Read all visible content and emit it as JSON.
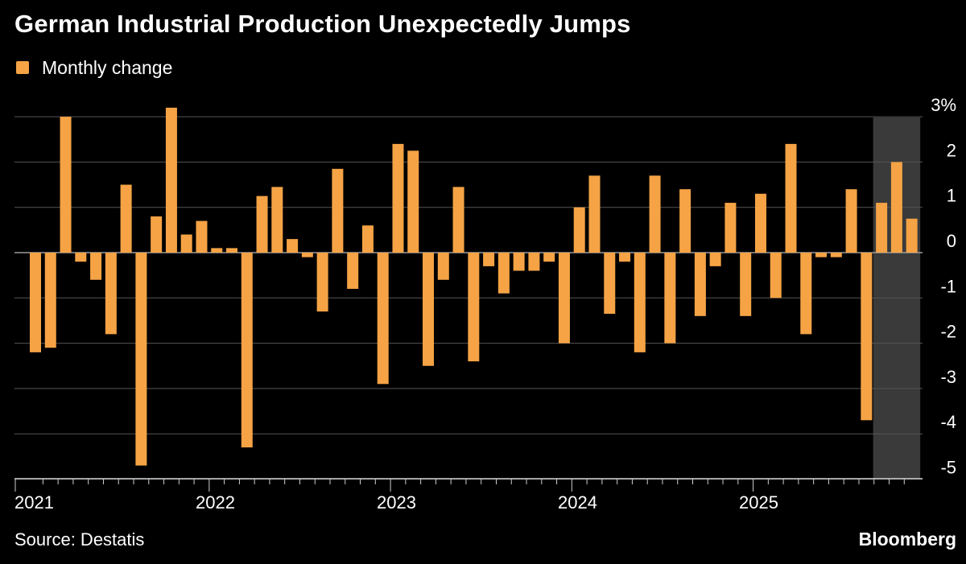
{
  "title": "German Industrial Production Unexpectedly Jumps",
  "legend": {
    "label": "Monthly change",
    "color": "#f5a345"
  },
  "source": "Source: Destatis",
  "brand": "Bloomberg",
  "colors": {
    "background": "#000000",
    "bar": "#f5a345",
    "grid": "#555555",
    "shade": "#3a3a3a",
    "text": "#ffffff"
  },
  "chart_data": {
    "type": "bar",
    "title": "German Industrial Production Unexpectedly Jumps",
    "series_name": "Monthly change",
    "xlabel": "",
    "ylabel": "",
    "ylim": [
      -5.3,
      3.2
    ],
    "y_ticks": [
      {
        "value": 3,
        "label": "3%"
      },
      {
        "value": 2,
        "label": "2"
      },
      {
        "value": 1,
        "label": "1"
      },
      {
        "value": 0,
        "label": "0"
      },
      {
        "value": -1,
        "label": "-1"
      },
      {
        "value": -2,
        "label": "-2"
      },
      {
        "value": -3,
        "label": "-3"
      },
      {
        "value": -4,
        "label": "-4"
      },
      {
        "value": -5,
        "label": "-5"
      }
    ],
    "x_year_labels": [
      "2021",
      "2022",
      "2023",
      "2024",
      "2025"
    ],
    "shaded_region": {
      "from_index": 56,
      "to_index": 58
    },
    "categories": [
      "2021-01",
      "2021-02",
      "2021-03",
      "2021-04",
      "2021-05",
      "2021-06",
      "2021-07",
      "2021-08",
      "2021-09",
      "2021-10",
      "2021-11",
      "2021-12",
      "2022-01",
      "2022-02",
      "2022-03",
      "2022-04",
      "2022-05",
      "2022-06",
      "2022-07",
      "2022-08",
      "2022-09",
      "2022-10",
      "2022-11",
      "2022-12",
      "2023-01",
      "2023-02",
      "2023-03",
      "2023-04",
      "2023-05",
      "2023-06",
      "2023-07",
      "2023-08",
      "2023-09",
      "2023-10",
      "2023-11",
      "2023-12",
      "2024-01",
      "2024-02",
      "2024-03",
      "2024-04",
      "2024-05",
      "2024-06",
      "2024-07",
      "2024-08",
      "2024-09",
      "2024-10",
      "2024-11",
      "2024-12",
      "2025-01",
      "2025-02",
      "2025-03",
      "2025-04",
      "2025-05",
      "2025-06",
      "2025-07",
      "2025-08",
      "2025-09",
      "2025-10",
      "2025-11"
    ],
    "values": [
      -2.2,
      -2.1,
      3.0,
      -0.2,
      -0.6,
      -1.8,
      1.5,
      -4.7,
      0.8,
      3.2,
      0.4,
      0.7,
      0.1,
      0.1,
      -4.3,
      1.25,
      1.45,
      0.3,
      -0.1,
      -1.3,
      1.85,
      -0.8,
      0.6,
      -2.9,
      2.4,
      2.25,
      -2.5,
      -0.6,
      1.45,
      -2.4,
      -0.3,
      -0.9,
      -0.4,
      -0.4,
      -0.2,
      -2.0,
      1.0,
      1.7,
      -1.35,
      -0.2,
      -2.2,
      1.7,
      -2.0,
      1.4,
      -1.4,
      -0.3,
      1.1,
      -1.4,
      1.3,
      -1.0,
      2.4,
      -1.8,
      -0.1,
      -0.1,
      1.4,
      -3.7,
      1.1,
      2.0,
      0.75
    ]
  }
}
